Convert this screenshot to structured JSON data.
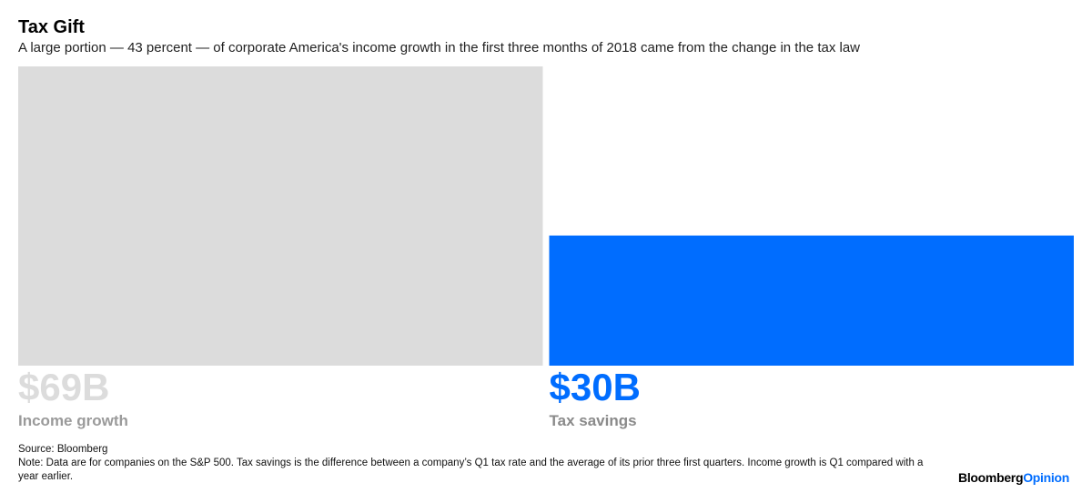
{
  "header": {
    "title": "Tax Gift",
    "subtitle": "A large portion — 43 percent — of corporate America's income growth in the first three months of 2018 came from the change in the tax law"
  },
  "chart_data": {
    "type": "bar",
    "title": "Tax Gift",
    "subtitle": "A large portion — 43 percent — of corporate America's income growth in the first three months of 2018 came from the change in the tax law",
    "categories": [
      "Income growth",
      "Tax savings"
    ],
    "values": [
      69,
      30
    ],
    "value_labels": [
      "$69B",
      "$30B"
    ],
    "unit": "billion USD",
    "ylim": [
      0,
      69
    ],
    "colors": [
      "#dcdcdc",
      "#006dff"
    ],
    "grid": false
  },
  "footer": {
    "source": "Source: Bloomberg",
    "note": "Note: Data are for companies on the S&P 500. Tax savings is the difference between a company’s Q1 tax rate and the average of its prior three first quarters. Income growth is Q1 compared with a year earlier."
  },
  "brand": {
    "part1": "Bloomberg",
    "part2": "Opinion",
    "accent_color": "#006dff"
  }
}
